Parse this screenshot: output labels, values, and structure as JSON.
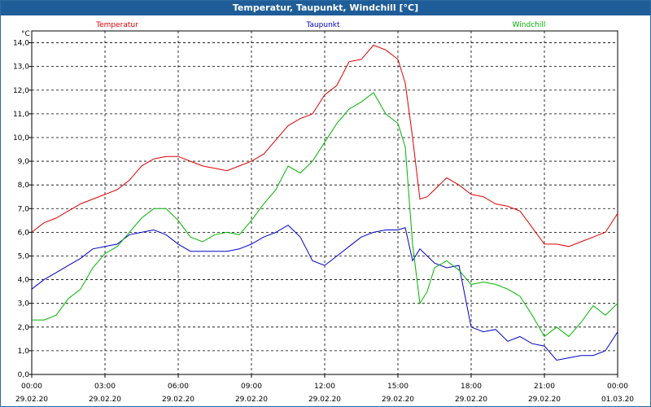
{
  "window_title": "Temperatur, Taupunkt, Windchill [°C]",
  "chart_data": {
    "type": "line",
    "unit_label": "°C",
    "ylim": [
      0,
      14.5
    ],
    "y_ticks": [
      "0,0",
      "1,0",
      "2,0",
      "3,0",
      "4,0",
      "5,0",
      "6,0",
      "7,0",
      "8,0",
      "9,0",
      "10,0",
      "11,0",
      "12,0",
      "13,0",
      "14,0"
    ],
    "x_range_hours": [
      0,
      24
    ],
    "x_ticks": [
      {
        "time": "00:00",
        "date": "29.02.20"
      },
      {
        "time": "03:00",
        "date": "29.02.20"
      },
      {
        "time": "06:00",
        "date": "29.02.20"
      },
      {
        "time": "09:00",
        "date": "29.02.20"
      },
      {
        "time": "12:00",
        "date": "29.02.20"
      },
      {
        "time": "15:00",
        "date": "29.02.20"
      },
      {
        "time": "18:00",
        "date": "29.02.20"
      },
      {
        "time": "21:00",
        "date": "29.02.20"
      },
      {
        "time": "00:00",
        "date": "01.03.20"
      }
    ],
    "grid": true,
    "series": [
      {
        "name": "Temperatur",
        "color": "#e00000",
        "x": [
          0,
          0.5,
          1,
          1.5,
          2,
          2.5,
          3,
          3.5,
          4,
          4.5,
          5,
          5.5,
          6,
          6.5,
          7,
          7.5,
          8,
          8.5,
          9,
          9.5,
          10,
          10.5,
          11,
          11.5,
          12,
          12.5,
          13,
          13.5,
          14,
          14.5,
          15,
          15.3,
          15.6,
          15.9,
          16.2,
          16.5,
          17,
          17.5,
          18,
          18.5,
          19,
          19.5,
          20,
          20.5,
          21,
          21.5,
          22,
          22.5,
          23,
          23.5,
          24
        ],
        "y": [
          6.0,
          6.4,
          6.6,
          6.9,
          7.2,
          7.4,
          7.6,
          7.8,
          8.2,
          8.8,
          9.1,
          9.2,
          9.2,
          9.0,
          8.8,
          8.7,
          8.6,
          8.8,
          9.0,
          9.3,
          9.9,
          10.5,
          10.8,
          11.0,
          11.8,
          12.2,
          13.2,
          13.3,
          13.9,
          13.7,
          13.3,
          12.3,
          10.0,
          7.4,
          7.5,
          7.8,
          8.3,
          8.0,
          7.6,
          7.5,
          7.2,
          7.1,
          6.9,
          6.2,
          5.5,
          5.5,
          5.4,
          5.6,
          5.8,
          6.0,
          6.8
        ]
      },
      {
        "name": "Taupunkt",
        "color": "#0000c8",
        "x": [
          0,
          0.5,
          1,
          1.5,
          2,
          2.5,
          3,
          3.5,
          4,
          4.5,
          5,
          5.5,
          6,
          6.5,
          7,
          7.5,
          8,
          8.5,
          9,
          9.5,
          10,
          10.5,
          11,
          11.5,
          12,
          12.5,
          13,
          13.5,
          14,
          14.5,
          15,
          15.3,
          15.6,
          15.9,
          16.2,
          16.5,
          17,
          17.5,
          18,
          18.5,
          19,
          19.5,
          20,
          20.5,
          21,
          21.5,
          22,
          22.5,
          23,
          23.5,
          24
        ],
        "y": [
          3.6,
          4.0,
          4.3,
          4.6,
          4.9,
          5.3,
          5.4,
          5.5,
          5.9,
          6.0,
          6.1,
          5.9,
          5.5,
          5.2,
          5.2,
          5.2,
          5.2,
          5.3,
          5.5,
          5.8,
          6.0,
          6.3,
          5.8,
          4.8,
          4.6,
          5.0,
          5.4,
          5.8,
          6.0,
          6.1,
          6.1,
          6.2,
          4.8,
          5.3,
          5.0,
          4.7,
          4.5,
          4.6,
          2.0,
          1.8,
          1.9,
          1.4,
          1.6,
          1.3,
          1.2,
          0.6,
          0.7,
          0.8,
          0.8,
          1.0,
          1.8
        ]
      },
      {
        "name": "Windchill",
        "color": "#00b400",
        "x": [
          0,
          0.5,
          1,
          1.5,
          2,
          2.5,
          3,
          3.5,
          4,
          4.5,
          5,
          5.5,
          6,
          6.5,
          7,
          7.5,
          8,
          8.5,
          9,
          9.5,
          10,
          10.5,
          11,
          11.5,
          12,
          12.5,
          13,
          13.5,
          14,
          14.5,
          15,
          15.3,
          15.6,
          15.9,
          16.2,
          16.5,
          17,
          17.5,
          18,
          18.5,
          19,
          19.5,
          20,
          20.5,
          21,
          21.5,
          22,
          22.5,
          23,
          23.5,
          24
        ],
        "y": [
          2.3,
          2.3,
          2.5,
          3.2,
          3.6,
          4.5,
          5.1,
          5.4,
          6.0,
          6.6,
          7.0,
          7.0,
          6.5,
          5.8,
          5.6,
          5.9,
          6.0,
          5.9,
          6.5,
          7.2,
          7.8,
          8.8,
          8.5,
          9.0,
          9.8,
          10.6,
          11.2,
          11.5,
          11.9,
          11.0,
          10.6,
          9.6,
          5.5,
          3.0,
          3.5,
          4.5,
          4.8,
          4.4,
          3.8,
          3.9,
          3.8,
          3.6,
          3.3,
          2.5,
          1.6,
          2.0,
          1.6,
          2.2,
          2.9,
          2.5,
          3.0
        ]
      }
    ]
  }
}
